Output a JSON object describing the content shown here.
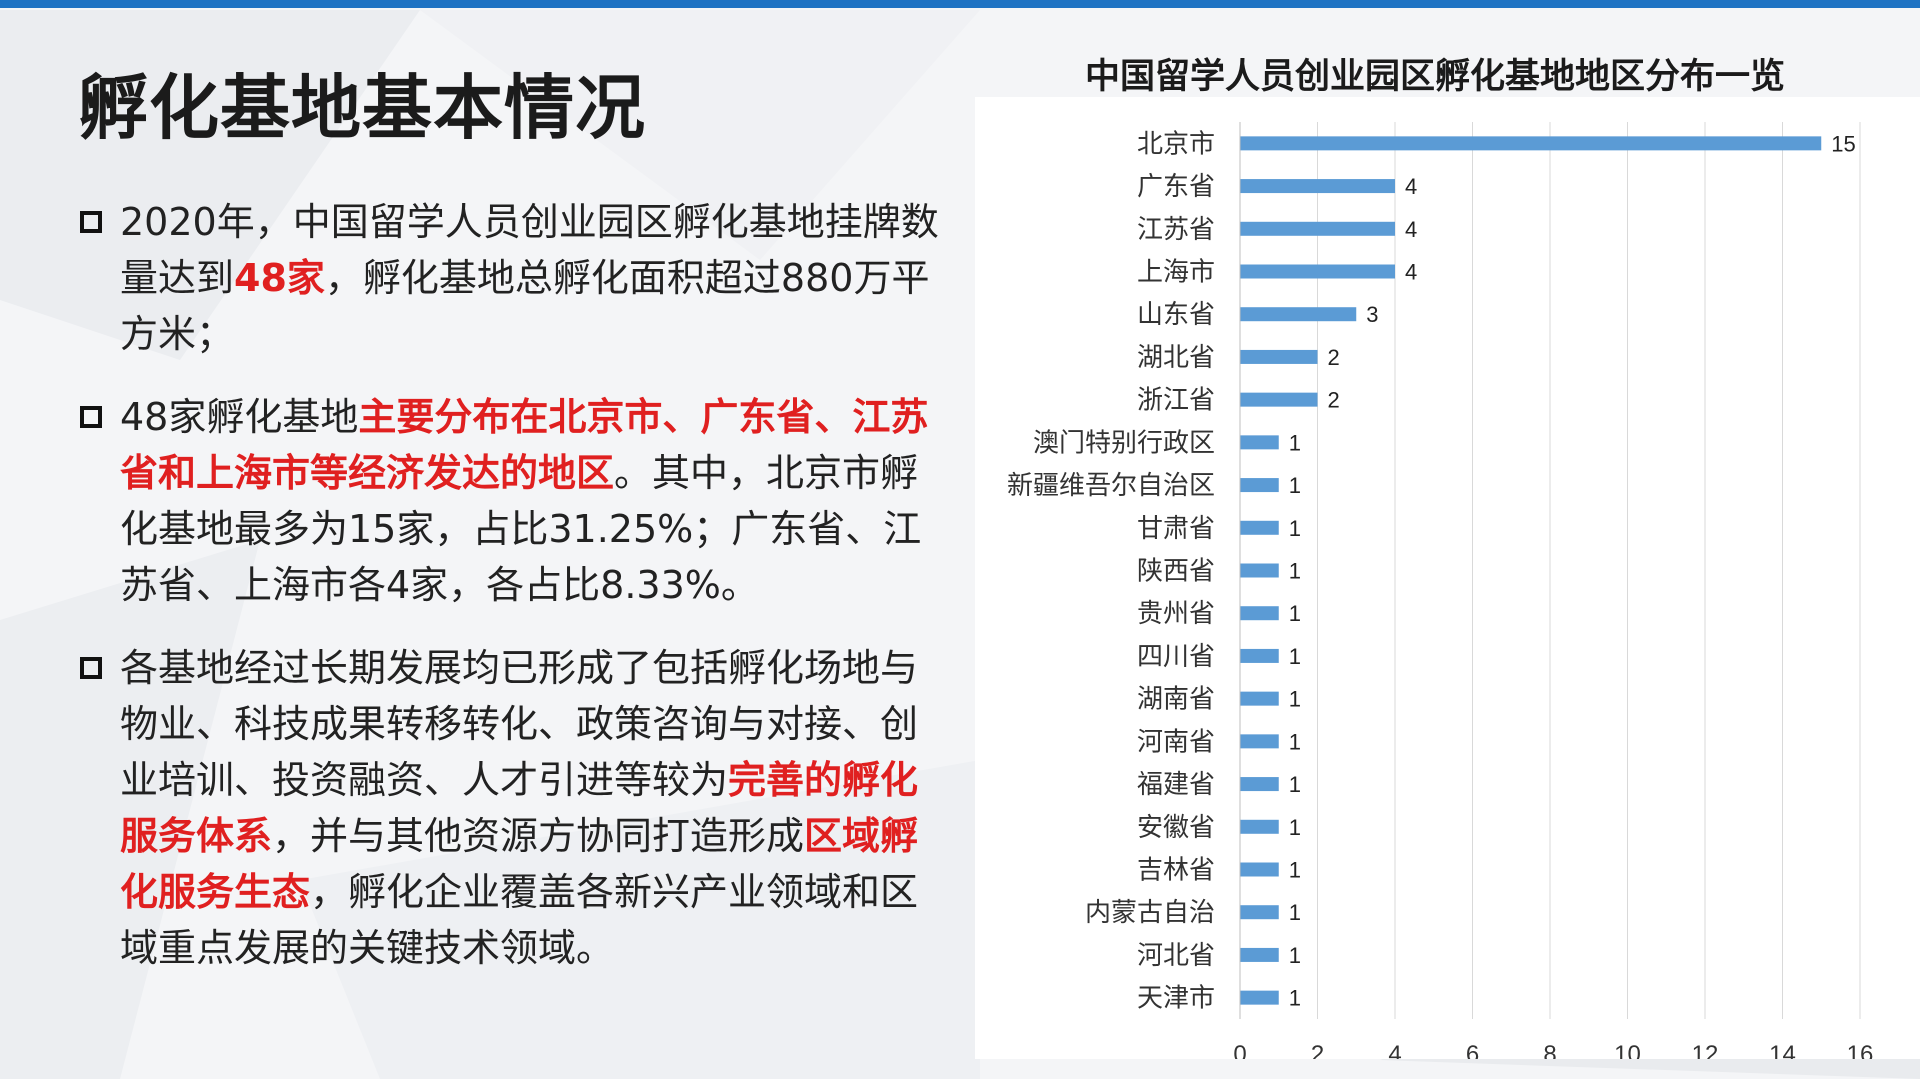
{
  "slide": {
    "title": "孵化基地基本情况",
    "bullets": [
      {
        "segments": [
          {
            "text": "2020年，中国留学人员创业园区孵化基地挂牌数量达到",
            "highlight": false
          },
          {
            "text": "48家",
            "highlight": true
          },
          {
            "text": "，孵化基地总孵化面积超过880万平方米；",
            "highlight": false
          }
        ]
      },
      {
        "segments": [
          {
            "text": "48家孵化基地",
            "highlight": false
          },
          {
            "text": "主要分布在北京市、广东省、江苏省和上海市等经济发达的地区",
            "highlight": true
          },
          {
            "text": "。其中，北京市孵化基地最多为15家，占比31.25%；广东省、江苏省、上海市各4家，各占比8.33%。",
            "highlight": false
          }
        ]
      },
      {
        "segments": [
          {
            "text": "各基地经过长期发展均已形成了包括孵化场地与物业、科技成果转移转化、政策咨询与对接、创业培训、投资融资、人才引进等较为",
            "highlight": false
          },
          {
            "text": "完善的孵化服务体系",
            "highlight": true
          },
          {
            "text": "，并与其他资源方协同打造形成",
            "highlight": false
          },
          {
            "text": "区域孵化服务生态",
            "highlight": true
          },
          {
            "text": "，孵化企业覆盖各新兴产业领域和区域重点发展的关键技术领域。",
            "highlight": false
          }
        ]
      }
    ]
  },
  "colors": {
    "accent_bar": "#1f73c3",
    "highlight": "#e02020",
    "bar": "#5b9bd5",
    "grid": "#d9d9d9"
  },
  "chart_data": {
    "type": "bar",
    "orientation": "horizontal",
    "title": "中国留学人员创业园区孵化基地地区分布一览",
    "categories": [
      "北京市",
      "广东省",
      "江苏省",
      "上海市",
      "山东省",
      "湖北省",
      "浙江省",
      "澳门特别行政区",
      "新疆维吾尔自治区",
      "甘肃省",
      "陕西省",
      "贵州省",
      "四川省",
      "湖南省",
      "河南省",
      "福建省",
      "安徽省",
      "吉林省",
      "内蒙古自治",
      "河北省",
      "天津市"
    ],
    "values": [
      15,
      4,
      4,
      4,
      3,
      2,
      2,
      1,
      1,
      1,
      1,
      1,
      1,
      1,
      1,
      1,
      1,
      1,
      1,
      1,
      1
    ],
    "xlim": [
      0,
      16
    ],
    "xticks": [
      0,
      2,
      4,
      6,
      8,
      10,
      12,
      14,
      16
    ],
    "grid": true,
    "data_labels": true,
    "legend": false
  }
}
